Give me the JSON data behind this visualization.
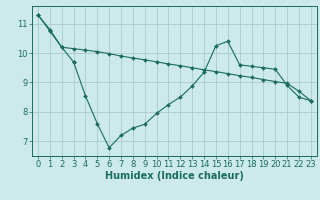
{
  "title": "",
  "xlabel": "Humidex (Indice chaleur)",
  "background_color": "#cceaea",
  "grid_color": "#aacccc",
  "line_color": "#1a6b60",
  "x_values": [
    0,
    1,
    2,
    3,
    4,
    5,
    6,
    7,
    8,
    9,
    10,
    11,
    12,
    13,
    14,
    15,
    16,
    17,
    18,
    19,
    20,
    21,
    22,
    23
  ],
  "line1_y": [
    11.3,
    10.8,
    10.2,
    9.7,
    null,
    null,
    null,
    null,
    null,
    null,
    null,
    null,
    null,
    null,
    null,
    null,
    null,
    null,
    null,
    null,
    null,
    null,
    null,
    null
  ],
  "line2_y": [
    null,
    null,
    null,
    9.7,
    8.55,
    7.6,
    6.78,
    7.2,
    7.45,
    7.58,
    7.95,
    8.25,
    8.5,
    8.88,
    9.35,
    10.25,
    10.4,
    9.6,
    9.55,
    9.5,
    9.45,
    8.9,
    8.5,
    8.38
  ],
  "line3_y": [
    11.3,
    10.75,
    10.2,
    10.15,
    10.1,
    10.05,
    9.98,
    9.9,
    9.83,
    9.77,
    9.7,
    9.63,
    9.57,
    9.5,
    9.43,
    9.37,
    9.3,
    9.23,
    9.17,
    9.1,
    9.03,
    8.97,
    8.7,
    8.38
  ],
  "ylim": [
    6.5,
    11.6
  ],
  "xlim": [
    -0.5,
    23.5
  ],
  "yticks": [
    7,
    8,
    9,
    10,
    11
  ],
  "xticks": [
    0,
    1,
    2,
    3,
    4,
    5,
    6,
    7,
    8,
    9,
    10,
    11,
    12,
    13,
    14,
    15,
    16,
    17,
    18,
    19,
    20,
    21,
    22,
    23
  ],
  "xlabel_fontsize": 7,
  "tick_fontsize": 6,
  "linewidth": 0.8,
  "markersize": 2.0
}
